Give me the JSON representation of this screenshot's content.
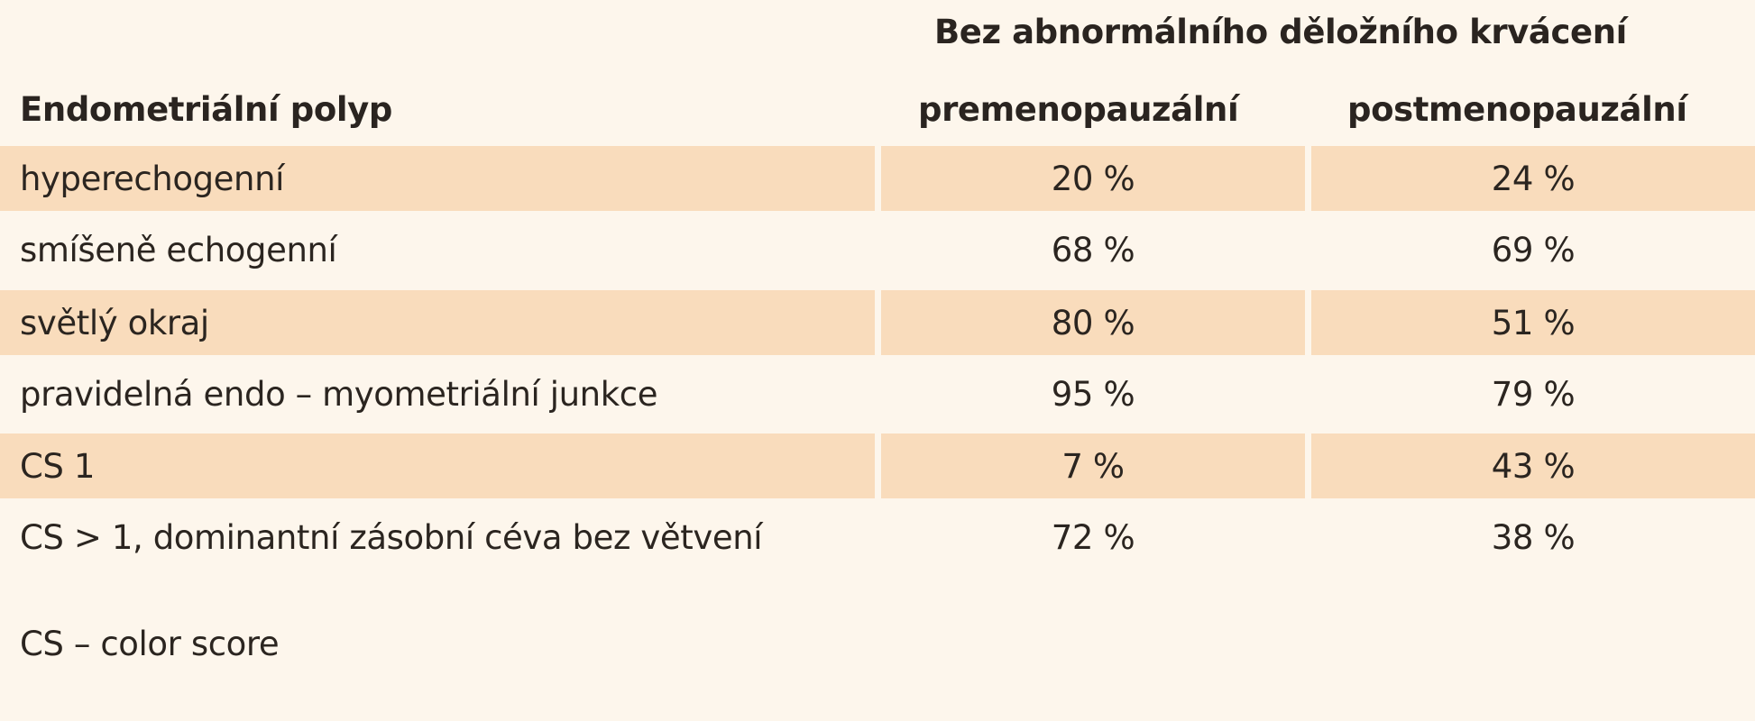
{
  "table": {
    "group_header": "Bez abnormálního děložního krvácení",
    "columns": [
      "Endometriální polyp",
      "premenopauzální",
      "postmenopauzální"
    ],
    "rows": [
      {
        "label": "hyperechogenní",
        "pre": "20 %",
        "post": "24 %"
      },
      {
        "label": "smíšeně echogenní",
        "pre": "68 %",
        "post": "69 %"
      },
      {
        "label": "světlý okraj",
        "pre": "80 %",
        "post": "51 %"
      },
      {
        "label": "pravidelná endo – myometriální junkce",
        "pre": "95 %",
        "post": "79 %"
      },
      {
        "label": "CS 1",
        "pre": "7 %",
        "post": "43 %"
      },
      {
        "label": "CS > 1, dominantní zásobní céva bez větvení",
        "pre": "72 %",
        "post": "38 %"
      }
    ],
    "footnote": "CS – color score",
    "colors": {
      "background": "#fdf6ec",
      "shaded_row": "#f9dcbc",
      "text": "#2b2520"
    }
  }
}
